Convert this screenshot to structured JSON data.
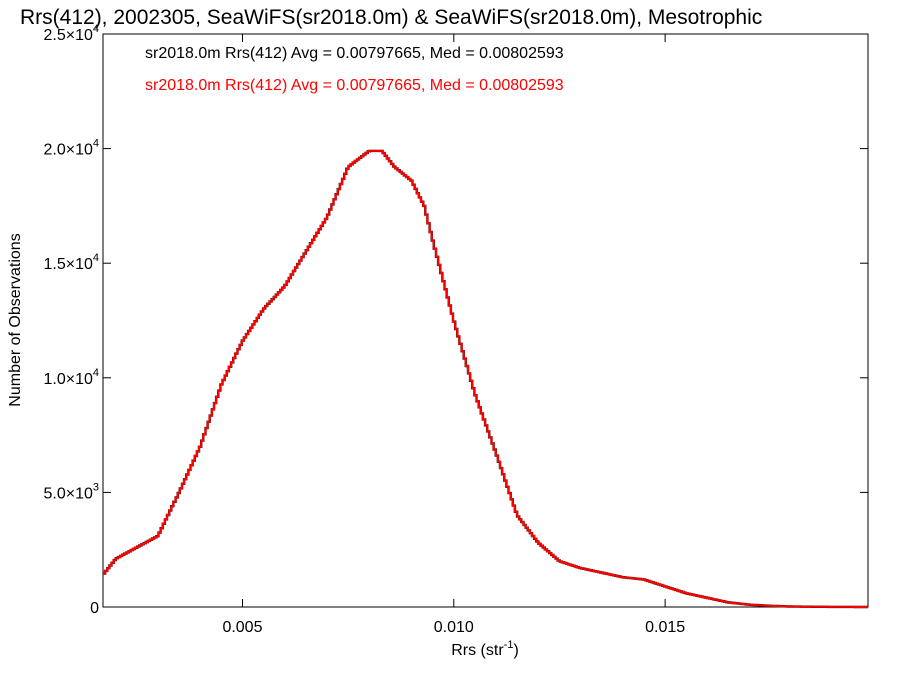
{
  "chart_data": {
    "type": "histogram",
    "title": "Rrs(412), 2002305, SeaWiFS(sr2018.0m) & SeaWiFS(sr2018.0m), Mesotrophic",
    "xlabel_base": "Rrs (str",
    "xlabel_sup": "-1",
    "xlabel_end": ")",
    "ylabel": "Number of Observations",
    "xlim": [
      0.0017,
      0.0198
    ],
    "ylim": [
      0,
      25000
    ],
    "x_ticks": [
      {
        "value": 0.005,
        "label": "0.005"
      },
      {
        "value": 0.01,
        "label": "0.010"
      },
      {
        "value": 0.015,
        "label": "0.015"
      }
    ],
    "y_ticks": [
      {
        "value": 0,
        "mant": "0",
        "exp": ""
      },
      {
        "value": 5000,
        "mant": "5.0×10",
        "exp": "3"
      },
      {
        "value": 10000,
        "mant": "1.0×10",
        "exp": "4"
      },
      {
        "value": 15000,
        "mant": "1.5×10",
        "exp": "4"
      },
      {
        "value": 20000,
        "mant": "2.0×10",
        "exp": "4"
      },
      {
        "value": 25000,
        "mant": "2.5×10",
        "exp": "4"
      }
    ],
    "legend_placement": "top-left",
    "series": [
      {
        "name": "sr2018.0m Rrs(412) Avg = 0.00797665, Med = 0.00802593",
        "color": "#000000"
      },
      {
        "name": "sr2018.0m Rrs(412) Avg = 0.00797665, Med = 0.00802593",
        "color": "#ff0000"
      }
    ],
    "x": [
      0.0017,
      0.002,
      0.0025,
      0.003,
      0.0035,
      0.004,
      0.0045,
      0.005,
      0.0055,
      0.006,
      0.0065,
      0.007,
      0.0075,
      0.008,
      0.0083,
      0.0086,
      0.009,
      0.0093,
      0.0095,
      0.01,
      0.0105,
      0.011,
      0.0115,
      0.012,
      0.0125,
      0.013,
      0.0135,
      0.014,
      0.0145,
      0.015,
      0.0155,
      0.016,
      0.0165,
      0.017,
      0.0175,
      0.018,
      0.0185,
      0.019,
      0.0198
    ],
    "y": [
      1400,
      2100,
      2600,
      3100,
      5000,
      7000,
      9700,
      11600,
      13000,
      14000,
      15500,
      17000,
      19200,
      19900,
      19900,
      19200,
      18600,
      17500,
      16000,
      12500,
      9300,
      6700,
      4000,
      2800,
      2000,
      1700,
      1500,
      1300,
      1200,
      900,
      600,
      400,
      200,
      100,
      50,
      20,
      10,
      5,
      0
    ]
  }
}
